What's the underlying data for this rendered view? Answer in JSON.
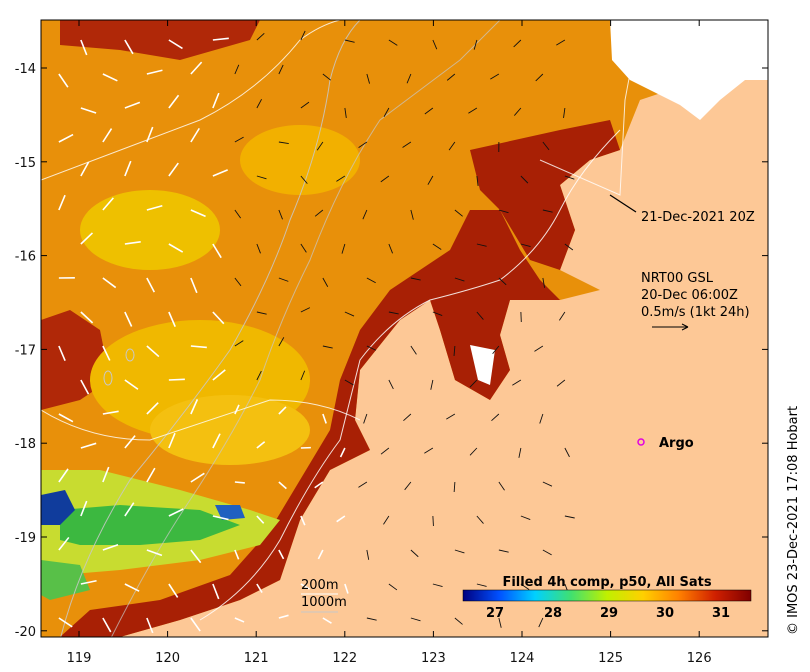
{
  "map": {
    "x_ticks": [
      "119",
      "120",
      "121",
      "122",
      "123",
      "124",
      "125",
      "126"
    ],
    "y_ticks": [
      "-14",
      "-15",
      "-16",
      "-17",
      "-18",
      "-19",
      "-20"
    ],
    "colors": {
      "land": "#fdc896",
      "sst_hot": "#9b1d07",
      "sst_warm": "#e57a00",
      "sst_mid": "#f5b400",
      "sst_cool": "#c8e02a",
      "sst_cold": "#35b93a",
      "sst_coldest": "#1040a0",
      "argo": "#e000e0"
    }
  },
  "annotations": {
    "date_label": "21-Dec-2021 20Z",
    "current_line1": "NRT00 GSL",
    "current_line2": "20-Dec 06:00Z",
    "current_line3": "0.5m/s (1kt 24h)",
    "argo_label": "Argo",
    "depth_200": "200m",
    "depth_1000": "1000m",
    "credit": "© IMOS 23-Dec-2021 17:08 Hobart"
  },
  "colorbar": {
    "title": "Filled 4h comp, p50, All Sats",
    "ticks": [
      "27",
      "28",
      "29",
      "30",
      "31"
    ],
    "stops": [
      "#00007f",
      "#0050ff",
      "#00d0ff",
      "#40e070",
      "#c0f000",
      "#ffd000",
      "#ff8000",
      "#d02000",
      "#7f0000"
    ]
  }
}
